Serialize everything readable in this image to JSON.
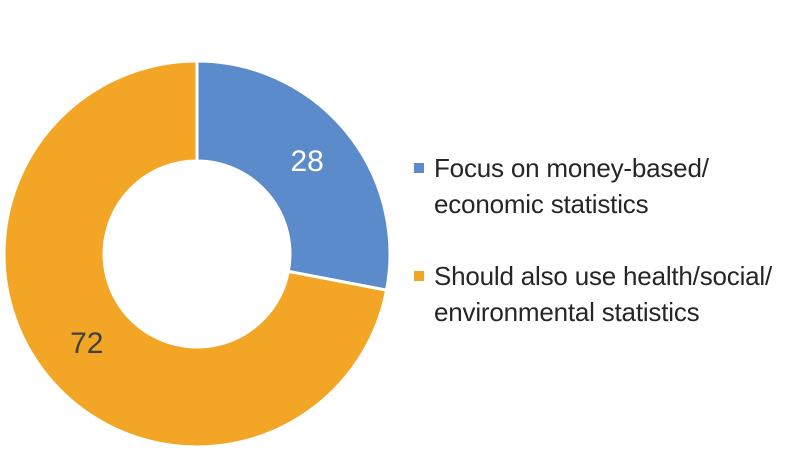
{
  "chart_data": {
    "type": "pie",
    "variant": "donut",
    "title": "",
    "slices": [
      {
        "label": "Focus on money-based/\neconomic statistics",
        "value": 28,
        "display": "28",
        "color": "#5B8BCB",
        "label_color": "#ffffff"
      },
      {
        "label": "Should also use health/social/\nenvironmental statistics",
        "value": 72,
        "display": "72",
        "color": "#F3A625",
        "label_color": "#404040"
      }
    ],
    "legend_position": "right",
    "start_angle": "top",
    "direction": "clockwise"
  }
}
